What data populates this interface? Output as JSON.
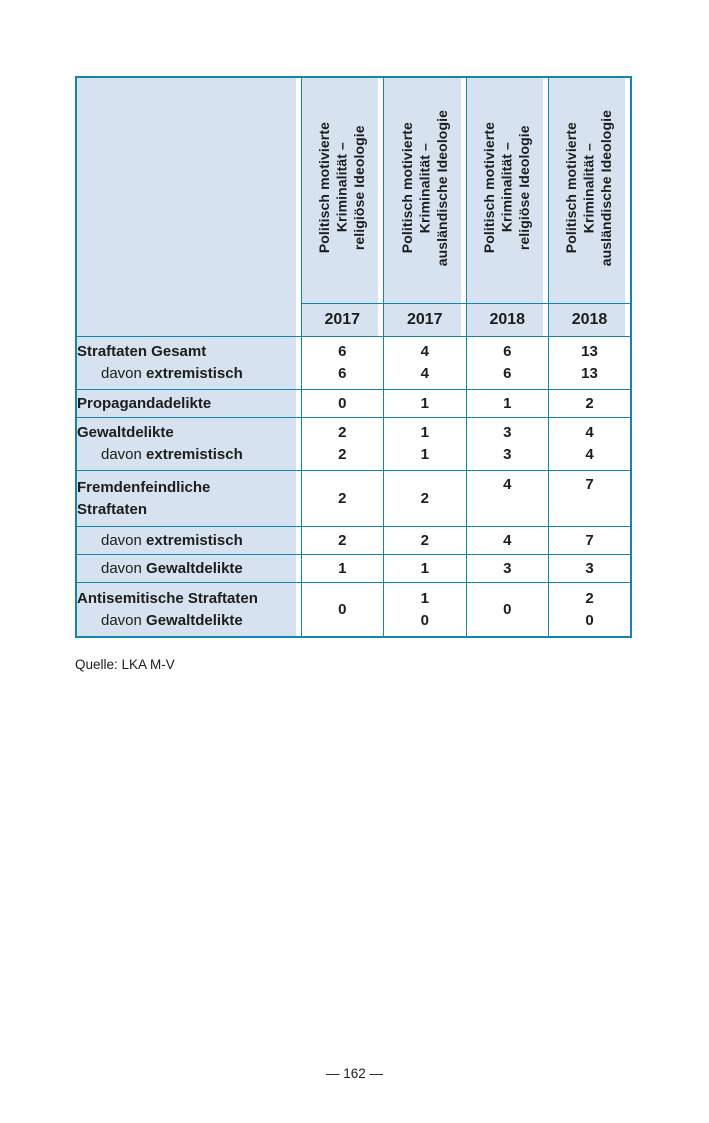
{
  "page": {
    "source": "Quelle: LKA M-V",
    "number_label": "— 162 —"
  },
  "colors": {
    "border_teal": "#1485ab",
    "cell_blue": "#d6e2ef",
    "text": "#1d1d1b"
  },
  "table": {
    "columns": [
      {
        "title": "Politisch motivierte\nKriminalität –\nreligiöse Ideologie",
        "year": "2017"
      },
      {
        "title": "Politisch motivierte\nKriminalität –\nausländische Ideologie",
        "year": "2017"
      },
      {
        "title": "Politisch motivierte\nKriminalität –\nreligiöse Ideologie",
        "year": "2018"
      },
      {
        "title": "Politisch motivierte\nKriminalität –\nausländische Ideologie",
        "year": "2018"
      }
    ],
    "rows": [
      {
        "main": "Straftaten Gesamt",
        "sub_prefix": "davon ",
        "sub_word": "extremistisch",
        "cells": [
          "6\n6",
          "4\n4",
          "6\n6",
          "13\n13"
        ]
      },
      {
        "main": "Propagandadelikte",
        "cells": [
          "0",
          "1",
          "1",
          "2"
        ]
      },
      {
        "main": "Gewaltdelikte",
        "sub_prefix": "davon ",
        "sub_word": "extremistisch",
        "cells": [
          "2\n2",
          "1\n1",
          "3\n3",
          "4\n4"
        ]
      },
      {
        "main": "Fremdenfeindliche\nStraftaten",
        "cells": [
          "2",
          "2",
          "4",
          "7"
        ]
      },
      {
        "sub_prefix": "davon ",
        "sub_word": "extremistisch",
        "cells": [
          "2",
          "2",
          "4",
          "7"
        ]
      },
      {
        "sub_prefix": "davon ",
        "sub_word": "Gewaltdelikte",
        "cells": [
          "1",
          "1",
          "3",
          "3"
        ]
      },
      {
        "main": "Antisemitische Straftaten",
        "sub_prefix": "davon ",
        "sub_word": "Gewaltdelikte",
        "cells": [
          "0",
          "1\n0",
          "0",
          "2\n0"
        ]
      }
    ]
  }
}
